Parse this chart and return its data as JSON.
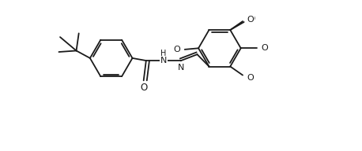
{
  "bg_color": "#ffffff",
  "line_color": "#1a1a1a",
  "line_width": 1.3,
  "font_size": 7.5,
  "figsize": [
    4.58,
    1.92
  ],
  "dpi": 100,
  "xlim": [
    0,
    10
  ],
  "ylim": [
    -1.5,
    4.5
  ]
}
